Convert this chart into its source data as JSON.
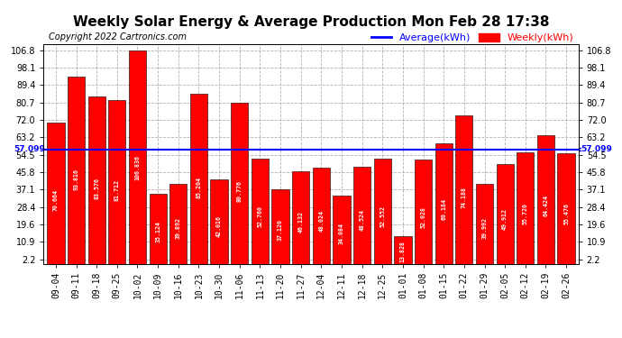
{
  "title": "Weekly Solar Energy & Average Production Mon Feb 28 17:38",
  "copyright": "Copyright 2022 Cartronics.com",
  "categories": [
    "09-04",
    "09-11",
    "09-18",
    "09-25",
    "10-02",
    "10-09",
    "10-16",
    "10-23",
    "10-30",
    "11-06",
    "11-13",
    "11-20",
    "11-27",
    "12-04",
    "12-11",
    "12-18",
    "12-25",
    "01-01",
    "01-08",
    "01-15",
    "01-22",
    "01-29",
    "02-05",
    "02-12",
    "02-19",
    "02-26"
  ],
  "values": [
    70.664,
    93.816,
    83.576,
    81.712,
    106.836,
    35.124,
    39.892,
    85.204,
    42.016,
    80.776,
    52.76,
    37.12,
    46.132,
    48.024,
    34.084,
    48.524,
    52.552,
    13.828,
    52.028,
    60.184,
    74.188,
    39.992,
    49.912,
    55.72,
    64.424,
    55.476
  ],
  "average": 57.099,
  "bar_color": "#FF0000",
  "average_color": "#0000FF",
  "average_label": "Average(kWh)",
  "weekly_label": "Weekly(kWh)",
  "yticks": [
    2.2,
    10.9,
    19.6,
    28.4,
    37.1,
    45.8,
    54.5,
    63.2,
    72.0,
    80.7,
    89.4,
    98.1,
    106.8
  ],
  "ymin": 0,
  "ymax": 110,
  "background_color": "#FFFFFF",
  "grid_color": "#AAAAAA",
  "title_fontsize": 11,
  "bar_label_fontsize": 4.8,
  "tick_fontsize": 7,
  "legend_fontsize": 8,
  "copyright_fontsize": 7
}
